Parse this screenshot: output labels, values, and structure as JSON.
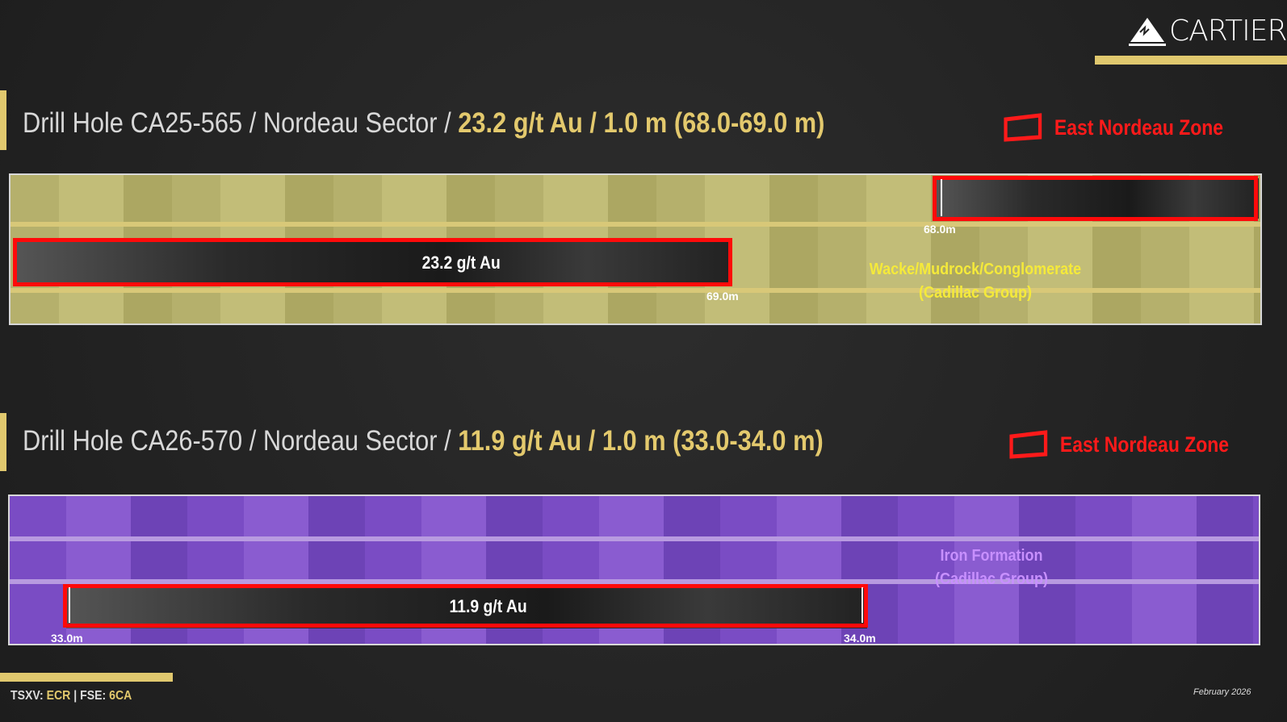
{
  "logo": {
    "text": "CARTIER",
    "icon": "mountain-icon"
  },
  "holes": [
    {
      "title_prefix": "Drill Hole CA25-565 / Nordeau Sector / ",
      "grade": "23.2 g/t Au / 1.0 m (68.0-69.0 m)",
      "zone": "East Nordeau Zone",
      "interval_label": "23.2 g/t Au",
      "start": "68.0m",
      "end": "69.0m",
      "rock_line1": "Wacke/Mudrock/Conglomerate",
      "rock_line2": "(Cadillac Group)",
      "rock_color": "#f5ea3a"
    },
    {
      "title_prefix": "Drill Hole CA26-570 / Nordeau Sector / ",
      "grade": "11.9 g/t Au / 1.0 m (33.0-34.0 m)",
      "zone": "East Nordeau Zone",
      "interval_label": "11.9 g/t Au",
      "start": "33.0m",
      "end": "34.0m",
      "rock_line1": "Iron Formation",
      "rock_line2": "(Cadillac Group)",
      "rock_color": "#c890ff"
    }
  ],
  "footer": {
    "tsxv_label": "TSXV:",
    "tsxv": "ECR",
    "sep": "|",
    "fse_label": "FSE:",
    "fse": "6CA",
    "date": "February 2026"
  },
  "colors": {
    "accent": "#e0c86e",
    "highlight": "#ff0a0a"
  }
}
